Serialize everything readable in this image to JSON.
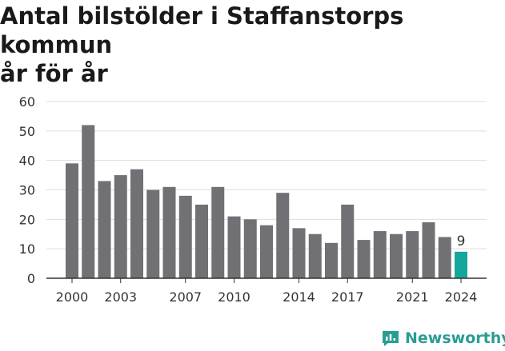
{
  "title": "Antal bilstölder i Staffanstorps kommun\når för år",
  "logo": {
    "text": "Newsworthy",
    "icon": "bar-chart-speech-icon",
    "color": "#2a9d93"
  },
  "colors": {
    "bar": "#717074",
    "highlight": "#15a79b",
    "grid": "#dddddd",
    "axis": "#333333"
  },
  "chart_data": {
    "type": "bar",
    "categories": [
      "2000",
      "2001",
      "2002",
      "2003",
      "2004",
      "2005",
      "2006",
      "2007",
      "2008",
      "2009",
      "2010",
      "2011",
      "2012",
      "2013",
      "2014",
      "2015",
      "2016",
      "2017",
      "2018",
      "2019",
      "2020",
      "2021",
      "2022",
      "2023",
      "2024"
    ],
    "values": [
      39,
      52,
      33,
      35,
      37,
      30,
      31,
      28,
      25,
      31,
      21,
      20,
      18,
      29,
      17,
      15,
      12,
      25,
      13,
      16,
      15,
      16,
      19,
      14,
      9
    ],
    "x_tick_labels": [
      "2000",
      "2003",
      "2007",
      "2010",
      "2014",
      "2017",
      "2021",
      "2024"
    ],
    "y_ticks": [
      0,
      10,
      20,
      30,
      40,
      50,
      60
    ],
    "ylim": [
      0,
      60
    ],
    "highlight": {
      "category": "2024",
      "label": "9"
    },
    "grid": true
  }
}
